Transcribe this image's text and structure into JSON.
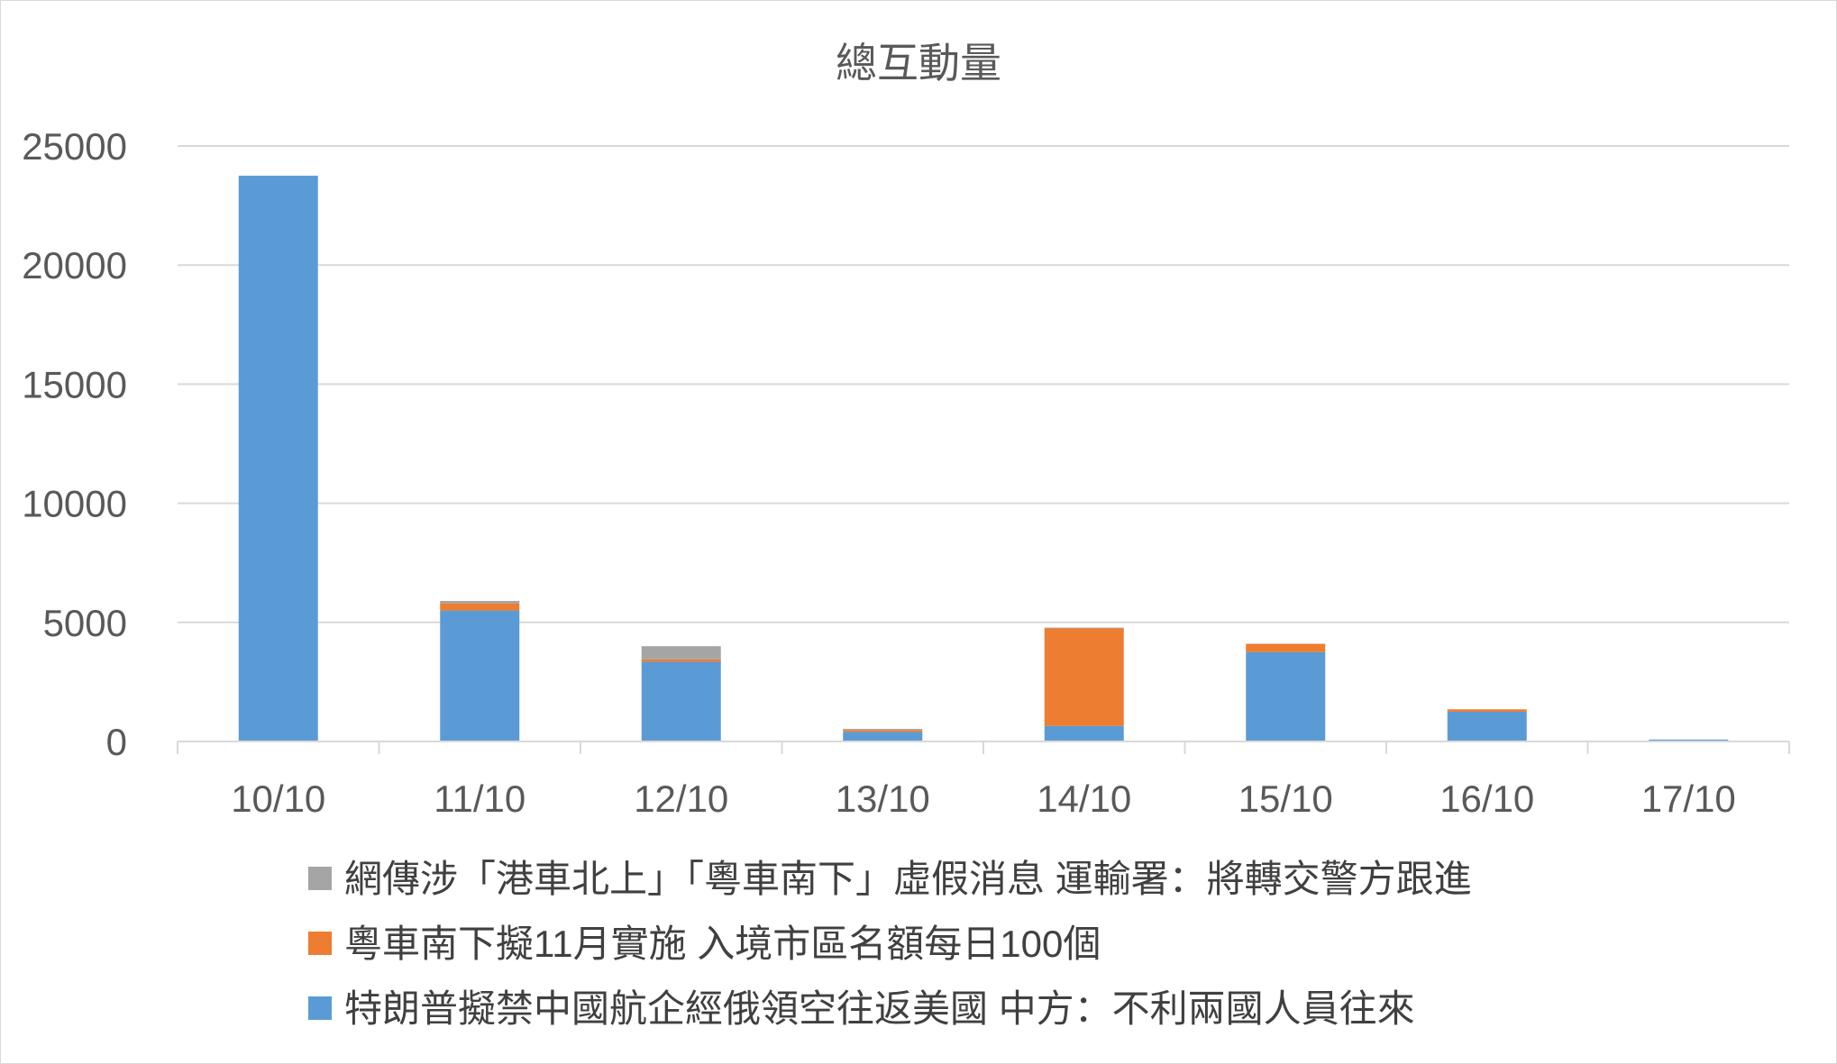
{
  "chart_data": {
    "type": "bar",
    "stacked": true,
    "title": "總互動量",
    "xlabel": "",
    "ylabel": "",
    "categories": [
      "10/10",
      "11/10",
      "12/10",
      "13/10",
      "14/10",
      "15/10",
      "16/10",
      "17/10"
    ],
    "ylim": [
      0,
      25000
    ],
    "yticks": [
      0,
      5000,
      10000,
      15000,
      20000,
      25000
    ],
    "grid": true,
    "legend_position": "bottom",
    "series": [
      {
        "name": "特朗普擬禁中國航企經俄領空往返美國 中方：不利兩國人員往來",
        "color": "#5B9BD5",
        "values": [
          23750,
          5500,
          3350,
          400,
          650,
          3750,
          1250,
          80
        ]
      },
      {
        "name": "粵車南下擬11月實施 入境市區名額每日100個",
        "color": "#ED7D31",
        "values": [
          0,
          300,
          100,
          80,
          4100,
          350,
          100,
          0
        ]
      },
      {
        "name": "網傳涉「港車北上」「粵車南下」虛假消息 運輸署：將轉交警方跟進",
        "color": "#A5A5A5",
        "values": [
          0,
          100,
          550,
          50,
          30,
          0,
          0,
          0
        ]
      }
    ]
  }
}
